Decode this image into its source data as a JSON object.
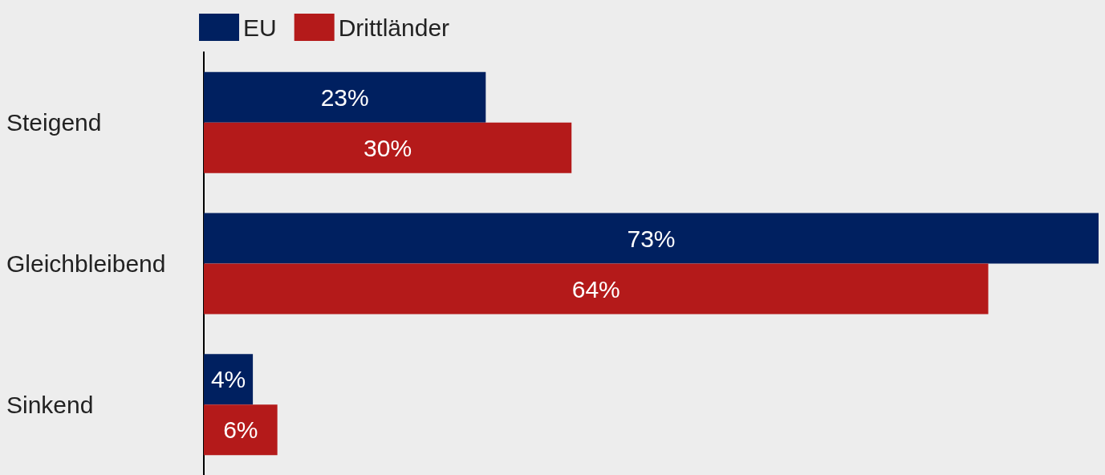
{
  "chart_data": {
    "type": "bar",
    "orientation": "horizontal",
    "categories": [
      "Steigend",
      "Gleichbleibend",
      "Sinkend"
    ],
    "series": [
      {
        "name": "EU",
        "color": "#002060",
        "values": [
          23,
          73,
          4
        ],
        "value_labels": [
          "23%",
          "73%",
          "4%"
        ]
      },
      {
        "name": "Drittländer",
        "color": "#b41a1a",
        "values": [
          30,
          64,
          6
        ],
        "value_labels": [
          "30%",
          "64%",
          "6%"
        ]
      }
    ],
    "xlim": [
      0,
      73
    ],
    "tick_labels": "y",
    "legend": "top left"
  }
}
